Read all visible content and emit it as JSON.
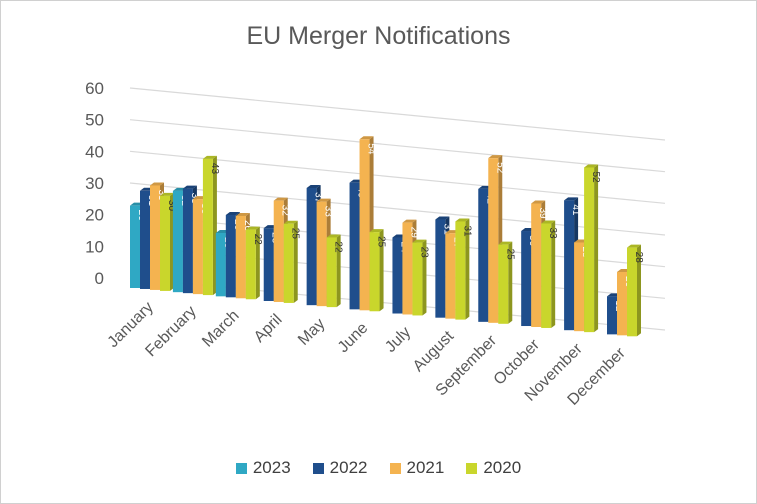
{
  "chart_data": {
    "type": "bar",
    "title": "EU Merger Notifications",
    "xlabel": "",
    "ylabel": "",
    "ylim": [
      0,
      60
    ],
    "yticks": [
      "0",
      "10",
      "20",
      "30",
      "40",
      "50",
      "60"
    ],
    "grid": true,
    "legend_position": "bottom",
    "categories": [
      "January",
      "February",
      "March",
      "April",
      "May",
      "June",
      "July",
      "August",
      "September",
      "October",
      "November",
      "December"
    ],
    "series": [
      {
        "name": "2023",
        "color": "#2FA8C4",
        "values": [
          26,
          32,
          20,
          null,
          null,
          null,
          null,
          null,
          null,
          null,
          null,
          null
        ]
      },
      {
        "name": "2022",
        "color": "#1F4E8C",
        "values": [
          31,
          33,
          26,
          23,
          37,
          40,
          24,
          31,
          42,
          30,
          41,
          12
        ]
      },
      {
        "name": "2021",
        "color": "#F4B350",
        "values": [
          33,
          30,
          26,
          32,
          33,
          54,
          29,
          27,
          52,
          39,
          28,
          20
        ]
      },
      {
        "name": "2020",
        "color": "#C9D62C",
        "values": [
          30,
          43,
          22,
          25,
          22,
          25,
          23,
          31,
          25,
          33,
          52,
          28
        ]
      }
    ]
  }
}
